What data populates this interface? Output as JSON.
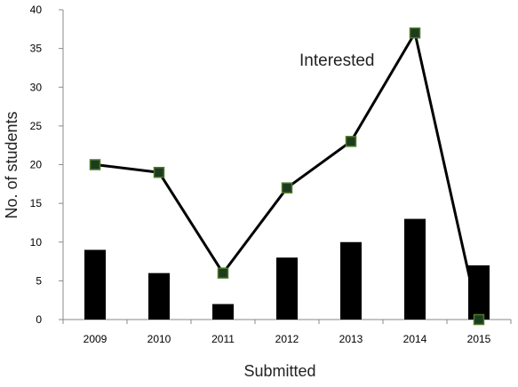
{
  "chart_data": {
    "type": "bar",
    "title": "",
    "xlabel": "Submitted",
    "ylabel": "No. of students",
    "categories": [
      "2009",
      "2010",
      "2011",
      "2012",
      "2013",
      "2014",
      "2015"
    ],
    "ylim": [
      0,
      40
    ],
    "yticks": [
      0,
      5,
      10,
      15,
      20,
      25,
      30,
      35,
      40
    ],
    "grid": false,
    "legend": "none",
    "series": [
      {
        "type": "bar",
        "color": "#000000",
        "values": [
          9,
          6,
          2,
          8,
          10,
          13,
          7
        ]
      },
      {
        "type": "line",
        "name": "Interested",
        "color": "#000000",
        "marker": "square",
        "marker_fill": "#1f3b1f",
        "marker_edge": "#4a7a2a",
        "values": [
          20,
          19,
          6,
          17,
          23,
          37,
          0
        ]
      }
    ],
    "annotations": [
      {
        "text": "Interested",
        "x": "2013",
        "y": 33
      }
    ]
  }
}
